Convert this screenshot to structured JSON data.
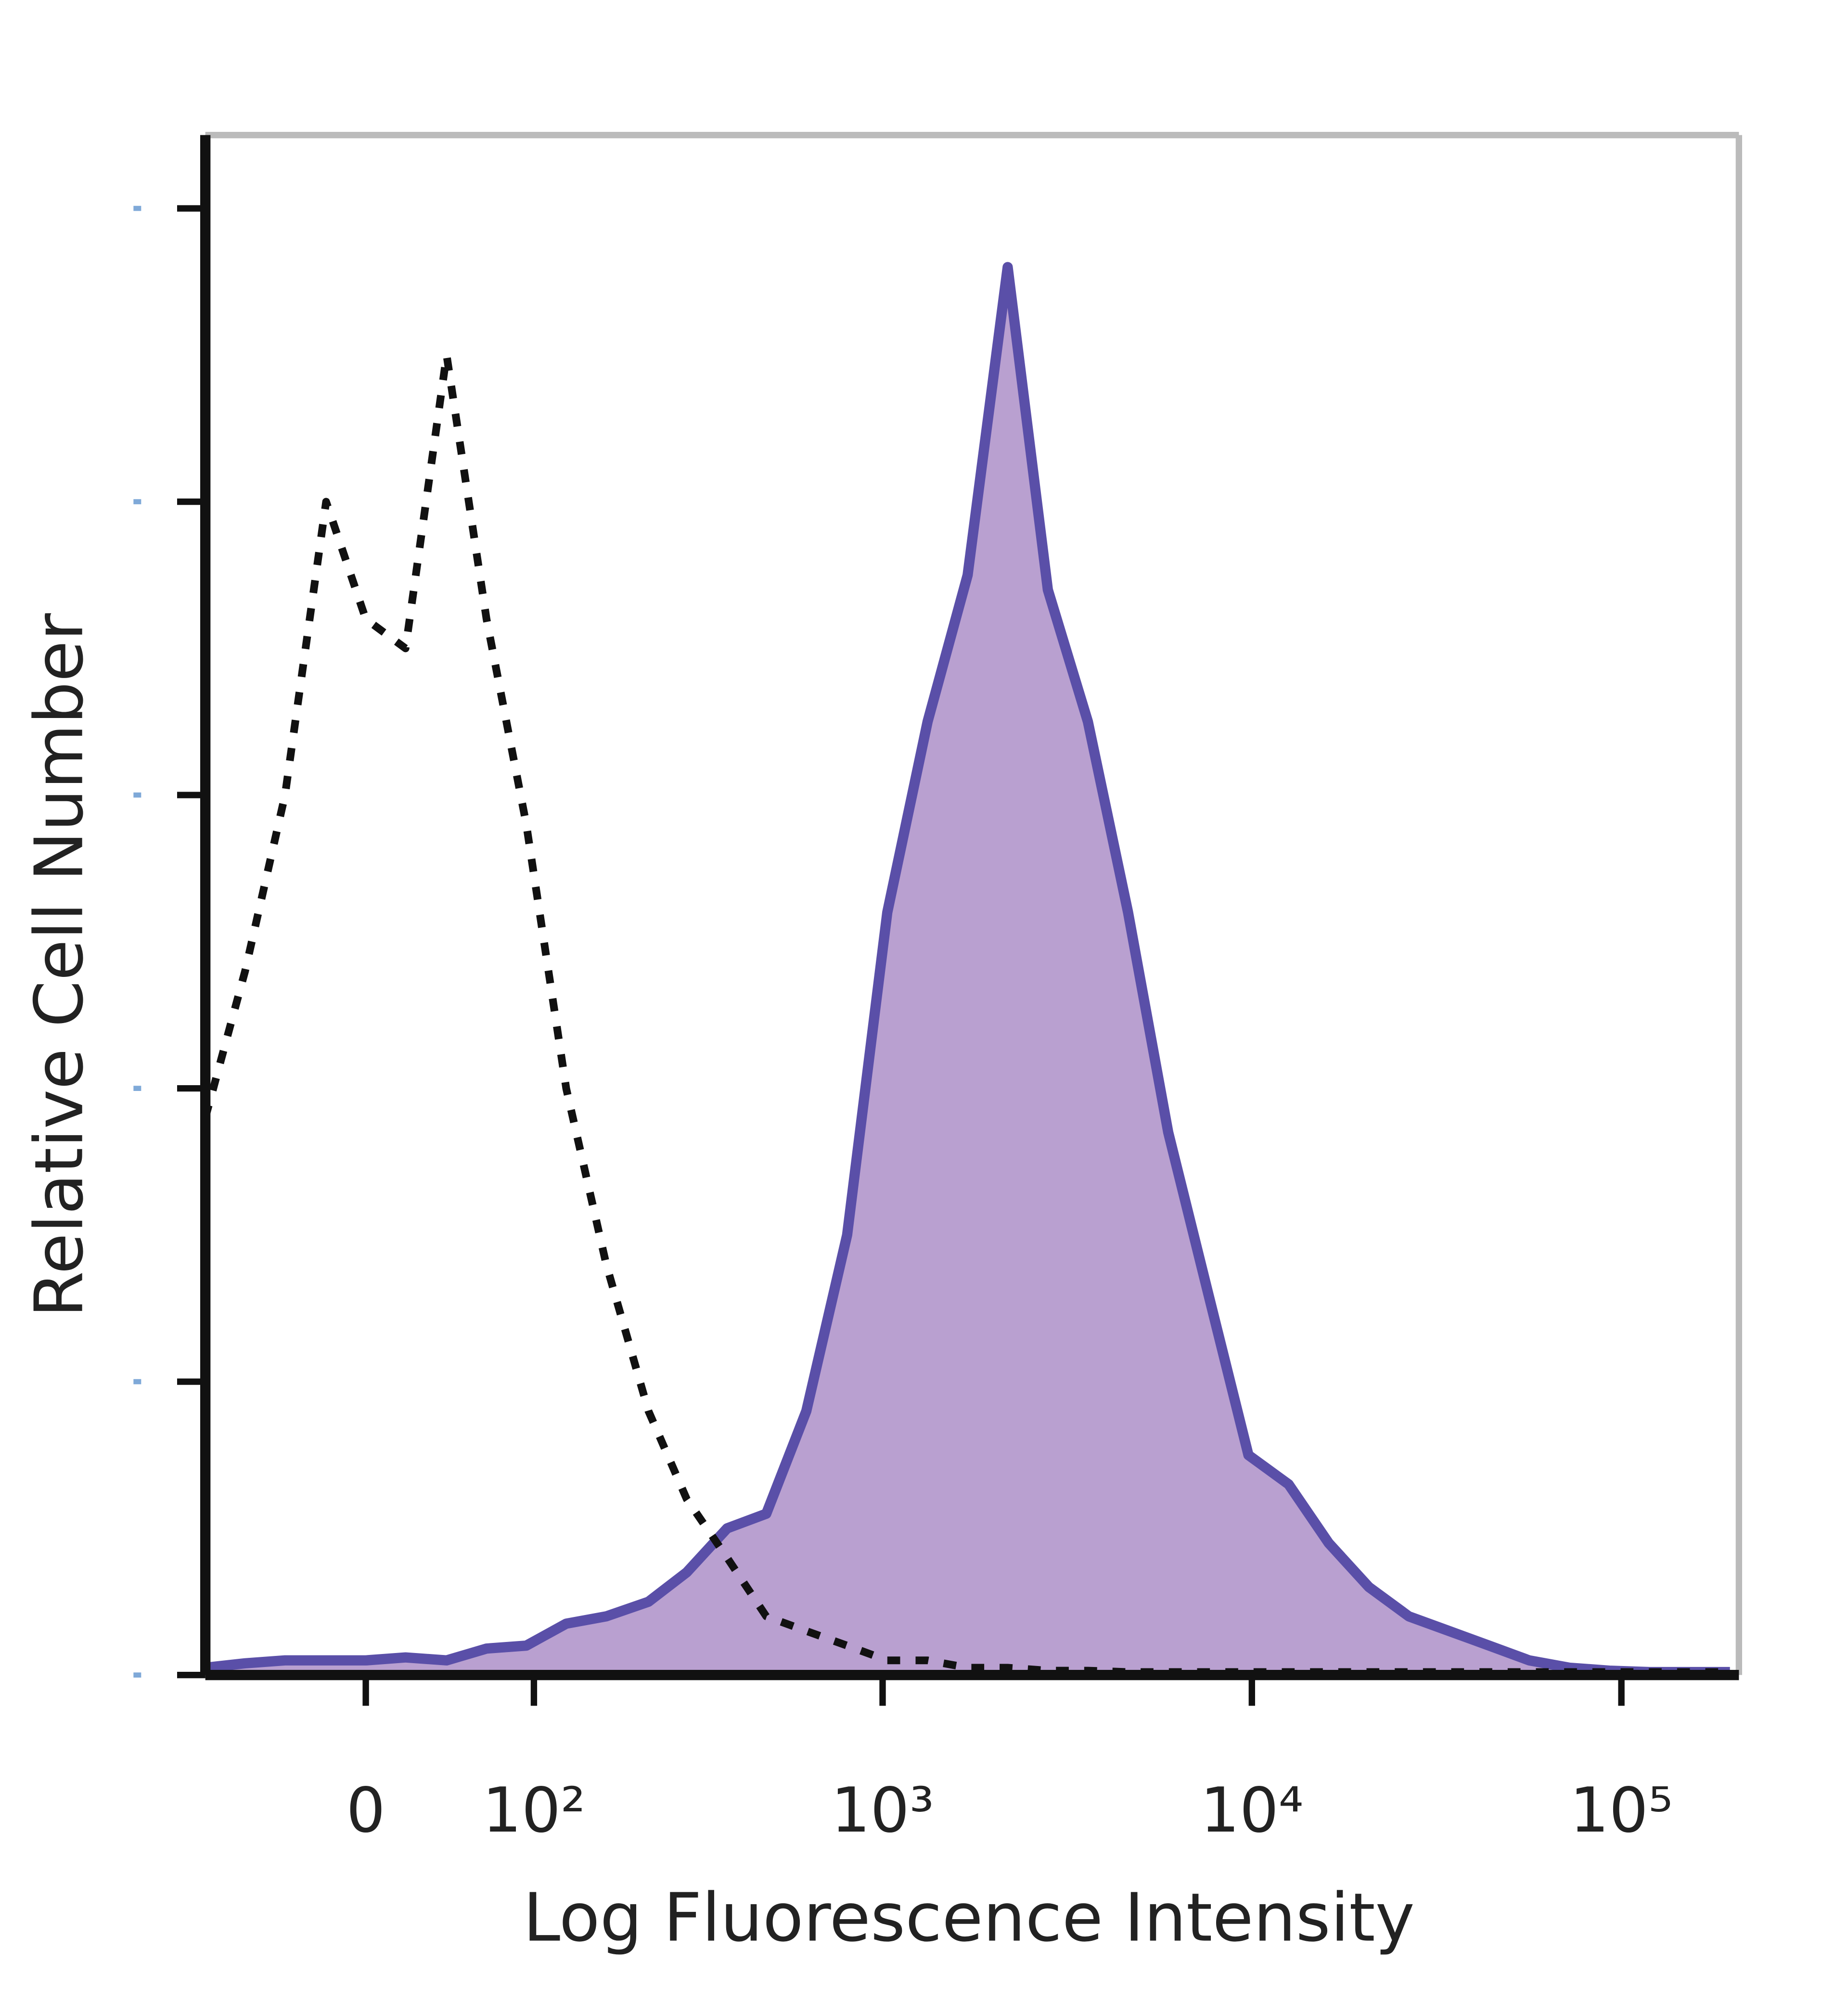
{
  "chart_data": {
    "type": "line",
    "xlabel": "Log Fluorescence Intensity",
    "ylabel": "Relative Cell Number",
    "x": [
      -94,
      -66,
      -42,
      -20,
      0,
      20,
      42,
      66,
      94,
      128,
      170,
      226,
      290,
      376,
      482,
      620,
      801,
      1030,
      1324,
      1700,
      2183,
      2804,
      3600,
      4623,
      5937,
      7623,
      9787,
      12570,
      16140,
      20720,
      26600,
      34160,
      43860,
      56320,
      72320,
      92860,
      119240,
      153100,
      196600
    ],
    "series": [
      {
        "color": "#5a4fa8",
        "fill": "#b9a0d0",
        "dashed": false,
        "values": [
          0.5,
          0.8,
          1,
          1,
          1,
          1.2,
          1,
          1.8,
          2,
          3.5,
          4,
          5,
          7,
          10,
          11,
          18,
          30,
          52,
          65,
          75,
          96,
          74,
          65,
          52,
          37,
          26,
          15,
          13,
          9,
          6,
          4,
          3,
          2,
          1,
          0.5,
          0.3,
          0.2,
          0.2,
          0.2
        ]
      },
      {
        "color": "#111111",
        "dashed": true,
        "values": [
          38,
          48,
          60,
          80,
          72,
          70,
          90,
          72,
          58,
          40,
          28,
          18,
          12,
          8,
          4,
          3,
          2,
          1,
          1,
          0.5,
          0.5,
          0.3,
          0.3,
          0.2,
          0.2,
          0.2,
          0.2,
          0.2,
          0.2,
          0.2,
          0.2,
          0.2,
          0.2,
          0.2,
          0.2,
          0.2,
          0.2,
          0.2,
          0.2
        ]
      }
    ],
    "xscale": "biexponential",
    "xlim": [
      -94,
      208000
    ],
    "xticks": [
      0,
      {
        "value": 100,
        "label": "10²"
      },
      {
        "value": 1000,
        "label": "10³"
      },
      {
        "value": 10000,
        "label": "10⁴"
      },
      {
        "value": 100000,
        "label": "10⁵"
      }
    ],
    "ylim": [
      0,
      105
    ],
    "yticks": [
      0,
      20,
      40,
      60,
      80,
      100
    ],
    "grid": false
  }
}
